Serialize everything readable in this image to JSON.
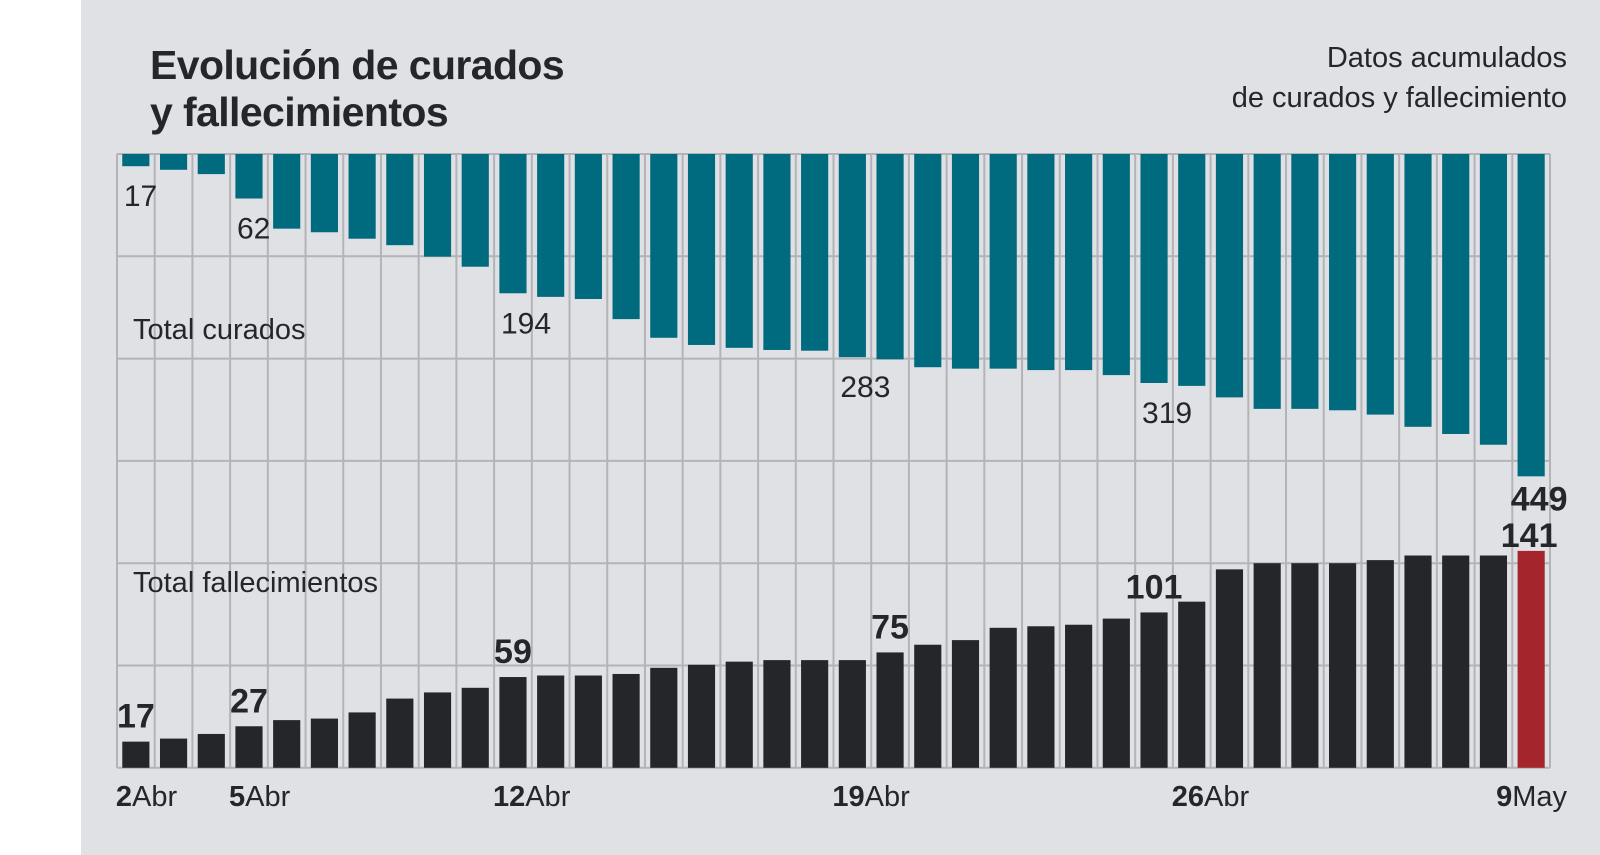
{
  "chart_data": {
    "type": "bar",
    "title": "Evolución de curados y fallecimientos",
    "title_lines": [
      "Evolución de curados",
      "y fallecimientos"
    ],
    "subtitle_lines": [
      "Datos acumulados",
      "de curados y fallecimiento"
    ],
    "xlabel": "",
    "ylabel": "",
    "grid": true,
    "x_tick_labels": [
      {
        "day": "2",
        "month": "Abr",
        "index": 0
      },
      {
        "day": "5",
        "month": "Abr",
        "index": 3
      },
      {
        "day": "12",
        "month": "Abr",
        "index": 10
      },
      {
        "day": "19",
        "month": "Abr",
        "index": 19
      },
      {
        "day": "26",
        "month": "Abr",
        "index": 28
      },
      {
        "day": "9",
        "month": "May",
        "index": 37
      }
    ],
    "series": [
      {
        "name": "Total curados",
        "color": "#006a7f",
        "direction": "down-from-top",
        "values": [
          17,
          22,
          28,
          62,
          104,
          109,
          118,
          127,
          143,
          157,
          194,
          199,
          202,
          230,
          256,
          266,
          270,
          273,
          274,
          283,
          286,
          297,
          299,
          299,
          301,
          301,
          308,
          319,
          323,
          339,
          355,
          355,
          357,
          363,
          380,
          390,
          405,
          449
        ],
        "labels": [
          {
            "index": 0,
            "text": "17"
          },
          {
            "index": 3,
            "text": "62"
          },
          {
            "index": 10,
            "text": "194"
          },
          {
            "index": 19,
            "text": "283"
          },
          {
            "index": 27,
            "text": "319"
          },
          {
            "index": 37,
            "text": "449",
            "bold": true
          }
        ]
      },
      {
        "name": "Total fallecimientos",
        "color": "#25262a",
        "highlight_color": "#a4262c",
        "highlight_index": 37,
        "direction": "up-from-bottom",
        "values": [
          17,
          19,
          22,
          27,
          31,
          32,
          36,
          45,
          49,
          52,
          59,
          60,
          60,
          61,
          65,
          67,
          69,
          70,
          70,
          70,
          75,
          80,
          83,
          91,
          92,
          93,
          97,
          101,
          108,
          129,
          133,
          133,
          133,
          135,
          138,
          138,
          138,
          141
        ],
        "labels": [
          {
            "index": 0,
            "text": "17"
          },
          {
            "index": 3,
            "text": "27"
          },
          {
            "index": 10,
            "text": "59"
          },
          {
            "index": 20,
            "text": "75"
          },
          {
            "index": 27,
            "text": "101"
          },
          {
            "index": 37,
            "text": "141"
          }
        ]
      }
    ]
  },
  "colors": {
    "background": "#e0e1e5",
    "grid": "#b3b4b8",
    "text": "#25262a"
  }
}
